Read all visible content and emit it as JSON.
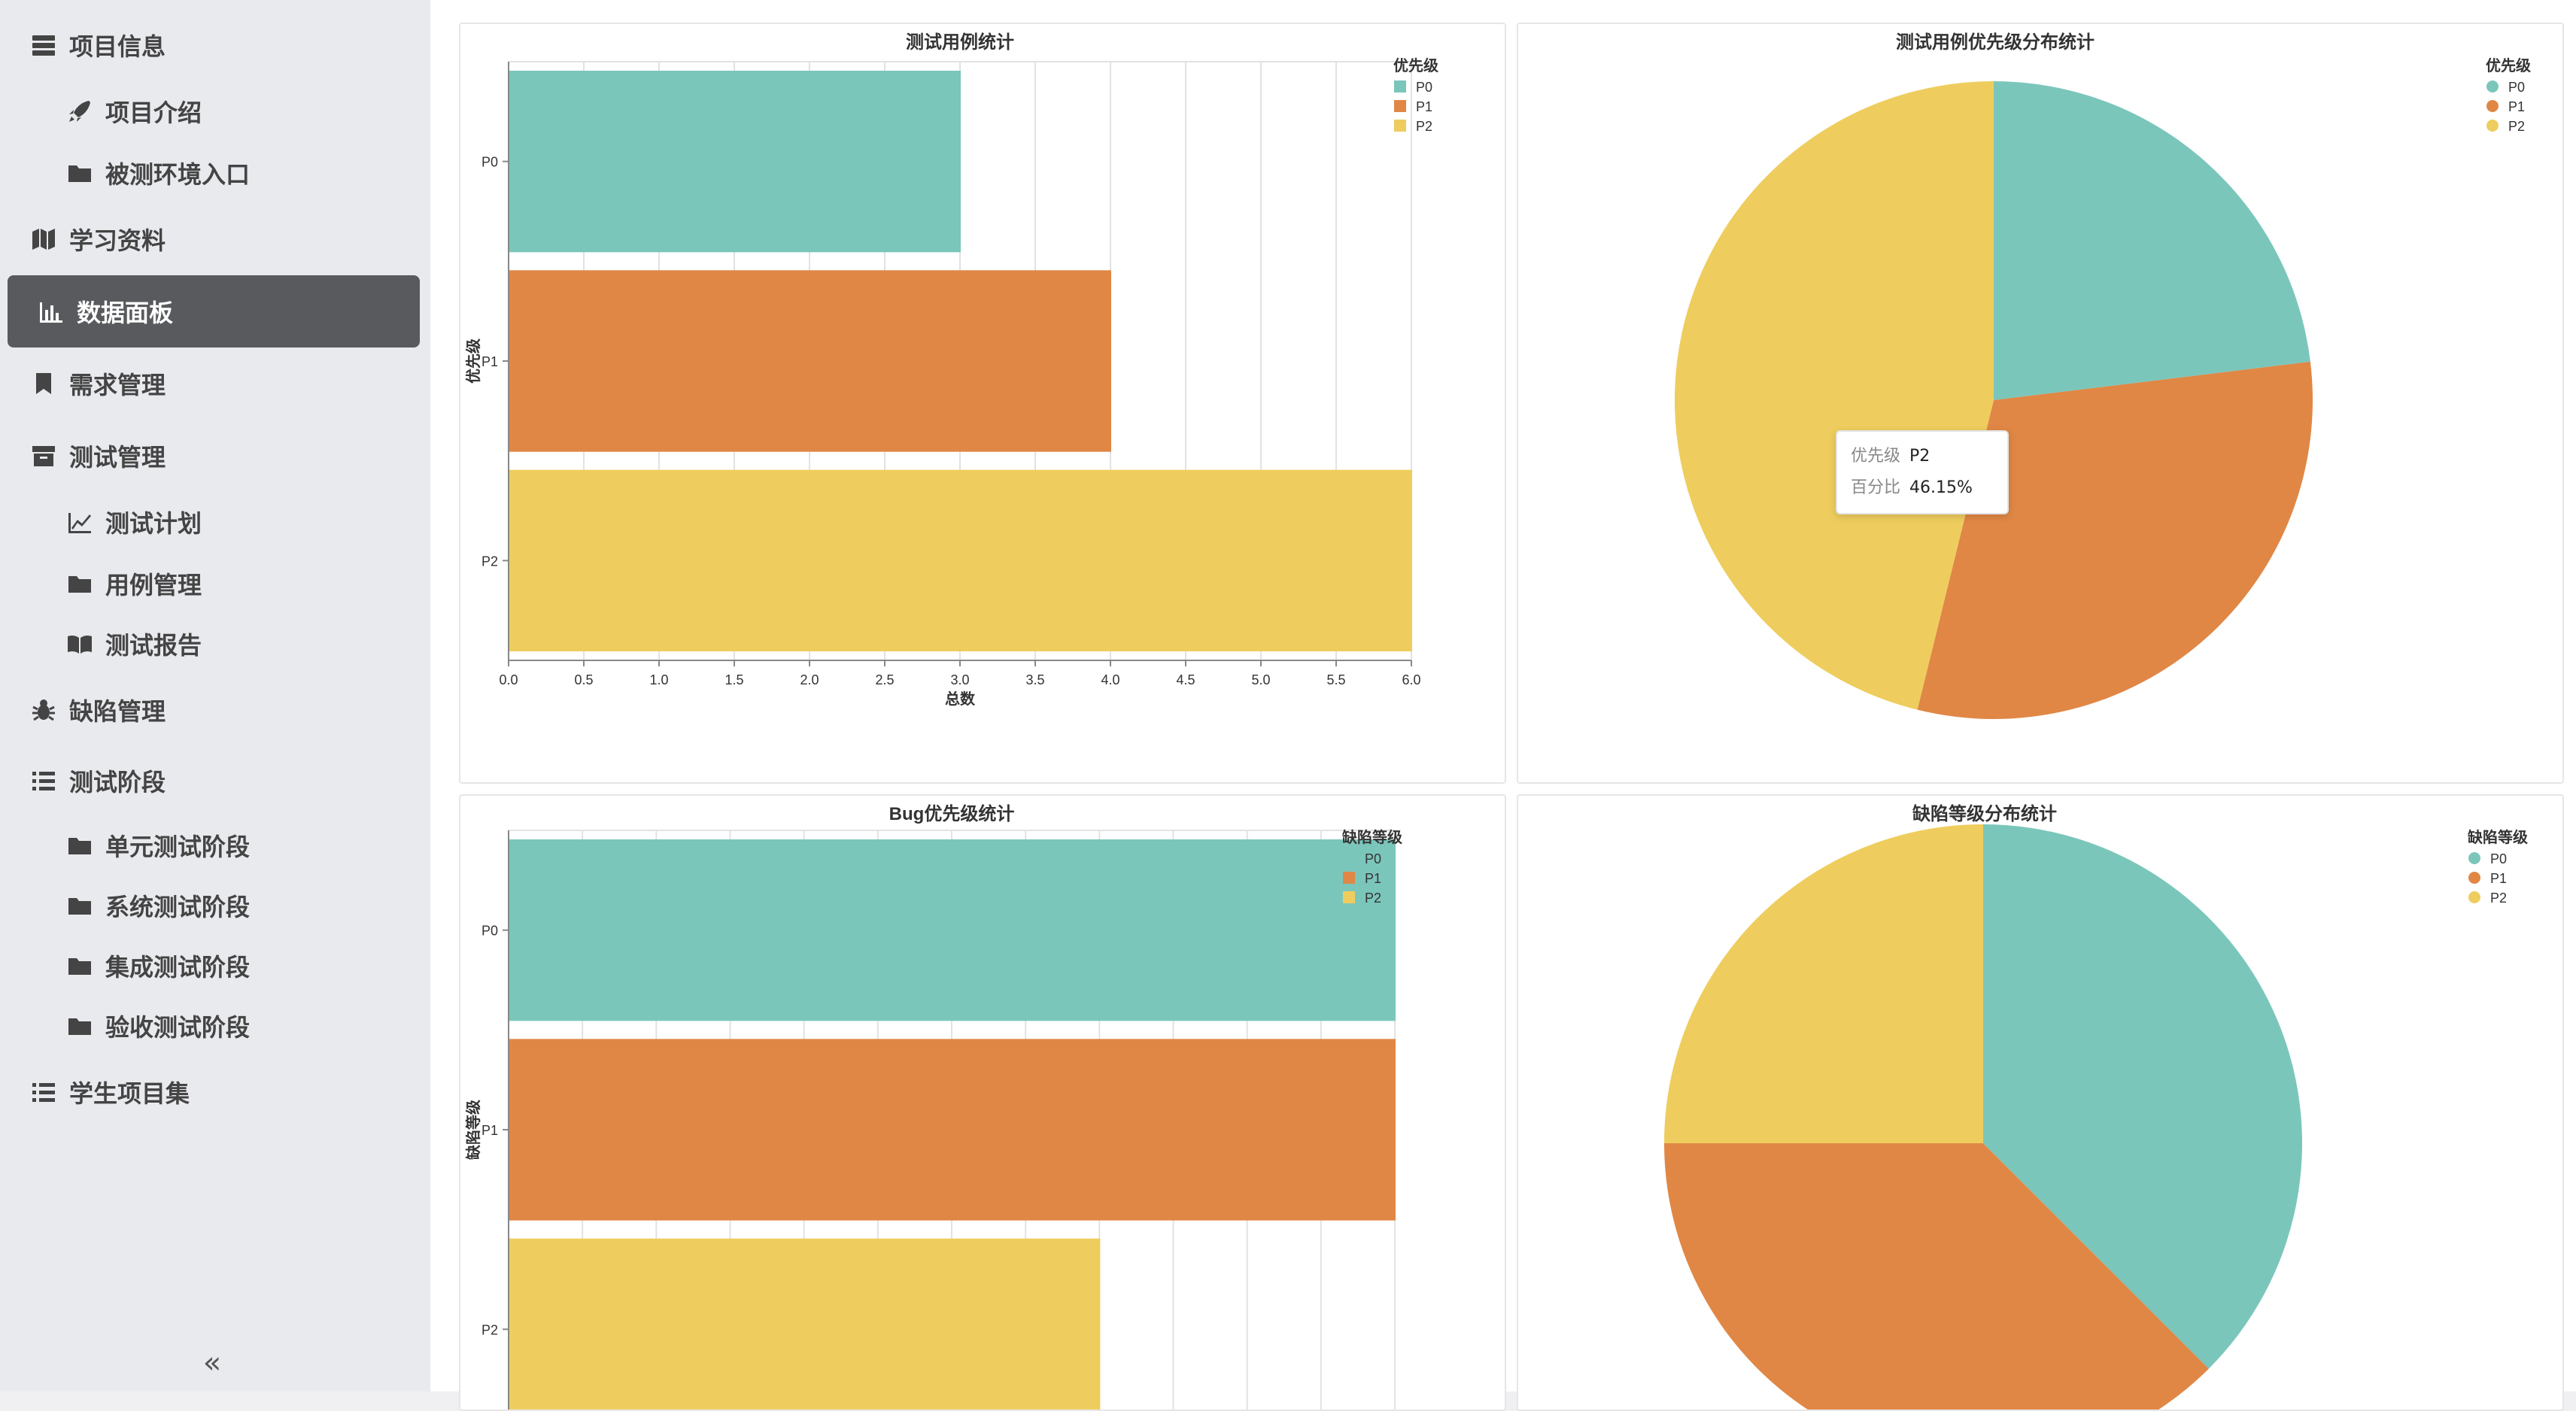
{
  "sidebar": {
    "items": [
      {
        "label": "项目信息",
        "icon": "server-icon"
      },
      {
        "label": "项目介绍",
        "icon": "rocket-icon"
      },
      {
        "label": "被测环境入口",
        "icon": "folder-icon"
      },
      {
        "label": "学习资料",
        "icon": "map-icon"
      },
      {
        "label": "数据面板",
        "icon": "bar-chart-icon"
      },
      {
        "label": "需求管理",
        "icon": "bookmark-icon"
      },
      {
        "label": "测试管理",
        "icon": "archive-icon"
      },
      {
        "label": "测试计划",
        "icon": "line-chart-icon"
      },
      {
        "label": "用例管理",
        "icon": "folder-icon"
      },
      {
        "label": "测试报告",
        "icon": "book-icon"
      },
      {
        "label": "缺陷管理",
        "icon": "bug-icon"
      },
      {
        "label": "测试阶段",
        "icon": "list-icon"
      },
      {
        "label": "单元测试阶段",
        "icon": "folder-icon"
      },
      {
        "label": "系统测试阶段",
        "icon": "folder-icon"
      },
      {
        "label": "集成测试阶段",
        "icon": "folder-icon"
      },
      {
        "label": "验收测试阶段",
        "icon": "folder-icon"
      },
      {
        "label": "学生项目集",
        "icon": "list-icon"
      }
    ],
    "active_label": "数据面板",
    "collapse_icon": "double-chevron-left-icon",
    "collapse_glyph": "«"
  },
  "colors": {
    "P0": "#7bc6bb",
    "P1": "#e08745",
    "P2": "#eecd5e"
  },
  "chart_data": [
    {
      "type": "bar",
      "title": "测试用例统计",
      "categories": [
        "P0",
        "P1",
        "P2"
      ],
      "values": [
        3,
        4,
        6
      ],
      "xlabel": "总数",
      "ylabel": "优先级",
      "xlim": [
        0,
        6
      ],
      "xticks": [
        "0.0",
        "0.5",
        "1.0",
        "1.5",
        "2.0",
        "2.5",
        "3.0",
        "3.5",
        "4.0",
        "4.5",
        "5.0",
        "5.5",
        "6.0"
      ],
      "legend_title": "优先级",
      "legend": [
        "P0",
        "P1",
        "P2"
      ]
    },
    {
      "type": "pie",
      "title": "测试用例优先级分布统计",
      "categories": [
        "P0",
        "P1",
        "P2"
      ],
      "values": [
        3,
        4,
        6
      ],
      "legend_title": "优先级",
      "legend": [
        "P0",
        "P1",
        "P2"
      ],
      "tooltip": {
        "key1": "优先级",
        "val1": "P2",
        "key2": "百分比",
        "val2": "46.15%"
      }
    },
    {
      "type": "bar",
      "title": "Bug优先级统计",
      "categories": [
        "P0",
        "P1",
        "P2"
      ],
      "values": [
        6,
        6,
        4
      ],
      "ylabel": "缺陷等级",
      "xlim": [
        0,
        6
      ],
      "legend_title": "缺陷等级",
      "legend": [
        "P0",
        "P1",
        "P2"
      ]
    },
    {
      "type": "pie",
      "title": "缺陷等级分布统计",
      "categories": [
        "P0",
        "P1",
        "P2"
      ],
      "values": [
        3,
        3,
        2
      ],
      "legend_title": "缺陷等级",
      "legend": [
        "P0",
        "P1",
        "P2"
      ]
    }
  ]
}
